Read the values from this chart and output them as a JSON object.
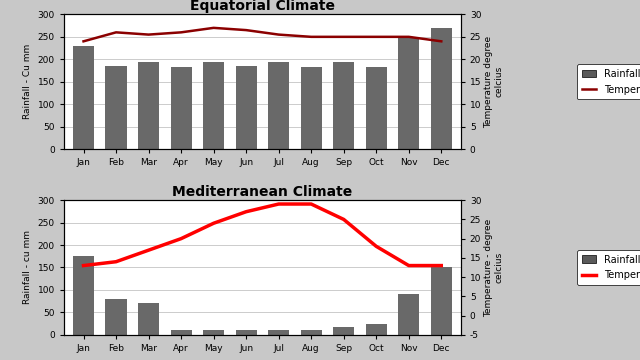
{
  "months": [
    "Jan",
    "Feb",
    "Mar",
    "Apr",
    "May",
    "Jun",
    "Jul",
    "Aug",
    "Sep",
    "Oct",
    "Nov",
    "Dec"
  ],
  "equatorial": {
    "title": "Equatorial Climate",
    "rainfall": [
      230,
      185,
      193,
      183,
      193,
      185,
      193,
      183,
      193,
      183,
      250,
      270
    ],
    "temperature": [
      24,
      26,
      25.5,
      26,
      27,
      26.5,
      25.5,
      25,
      25,
      25,
      25,
      24
    ],
    "ylabel_left": "Rainfall - Cu mm",
    "ylabel_right": "Temperature degree\ncelcius",
    "ylim_left": [
      0,
      300
    ],
    "ylim_right": [
      0,
      30
    ],
    "yticks_left": [
      0,
      50,
      100,
      150,
      200,
      250,
      300
    ],
    "yticks_right": [
      0,
      5,
      10,
      15,
      20,
      25,
      30
    ]
  },
  "mediterranean": {
    "title": "Mediterranean Climate",
    "rainfall": [
      175,
      80,
      70,
      10,
      10,
      10,
      10,
      10,
      18,
      25,
      90,
      150
    ],
    "temperature": [
      13,
      14,
      17,
      20,
      24,
      27,
      29,
      29,
      25,
      18,
      13,
      13
    ],
    "ylabel_left": "Rainfall - cu mm",
    "ylabel_right": "Temperature - degree\ncelcius",
    "ylim_left": [
      0,
      300
    ],
    "ylim_right": [
      -5,
      30
    ],
    "yticks_left": [
      0,
      50,
      100,
      150,
      200,
      250,
      300
    ],
    "yticks_right": [
      -5,
      0,
      5,
      10,
      15,
      20,
      25,
      30
    ]
  },
  "bar_color": "#696969",
  "temp_color_eq": "#8B0000",
  "temp_color_med": "#FF0000",
  "legend_rainfall_color": "#5a5a5a",
  "bg_color": "#ffffff",
  "fig_bg_color": "#c8c8c8",
  "title_fontsize": 10,
  "label_fontsize": 6.5,
  "tick_fontsize": 6.5,
  "legend_fontsize": 7
}
